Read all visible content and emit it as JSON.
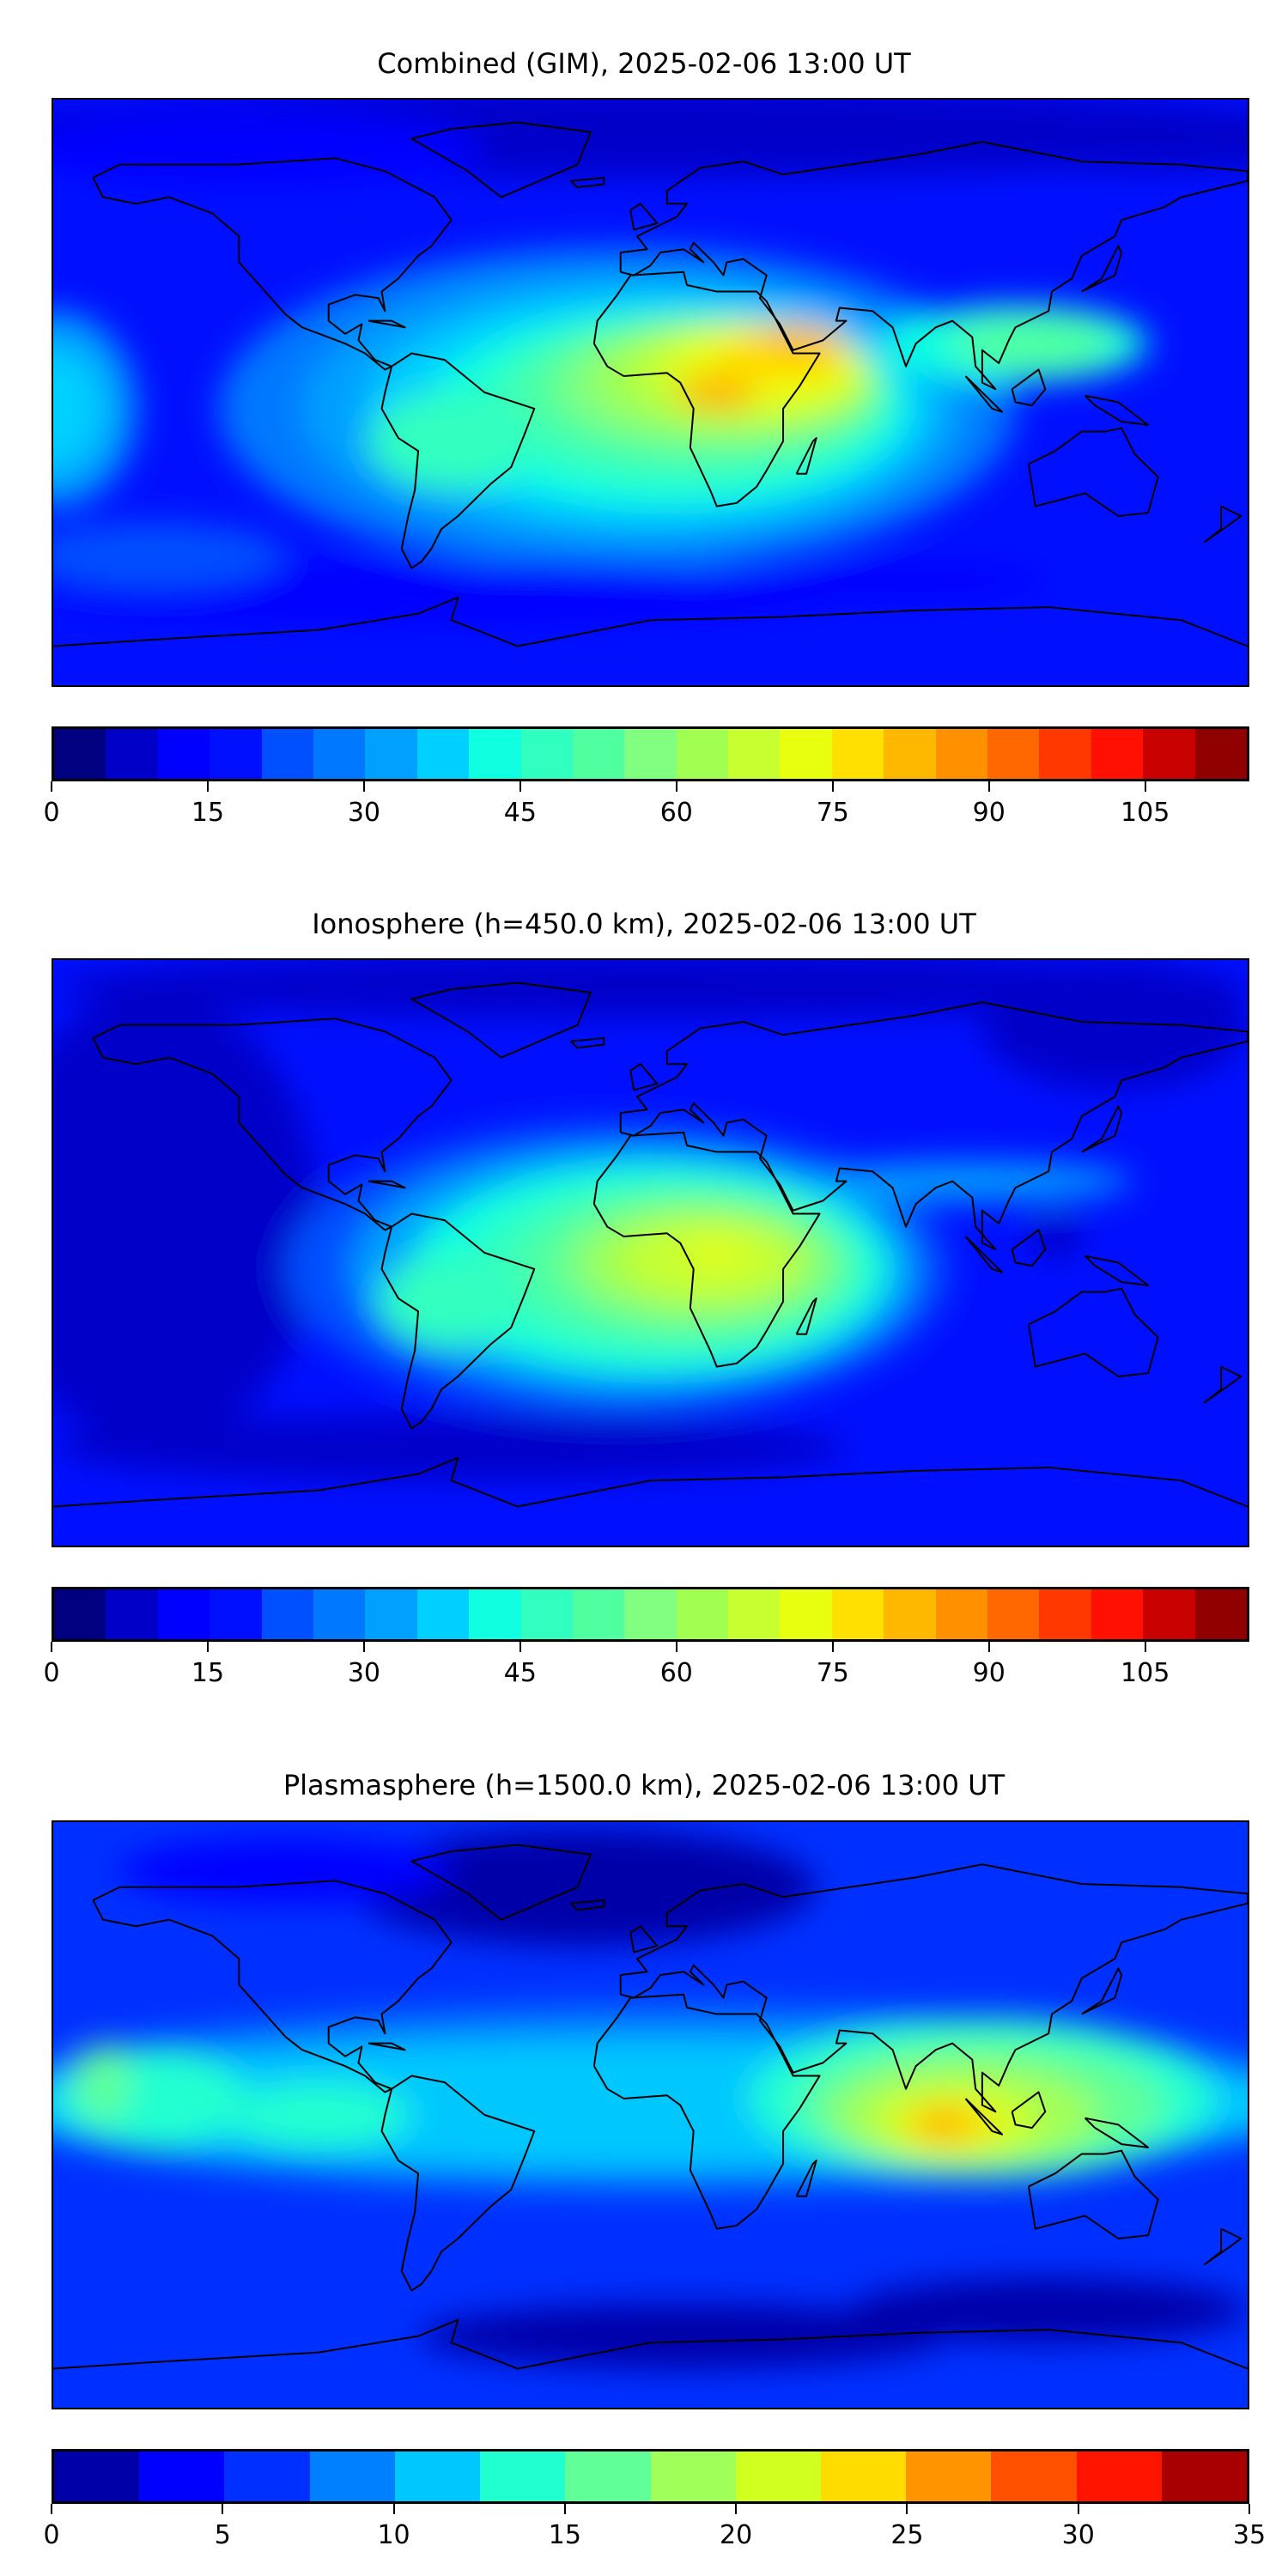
{
  "panels": [
    {
      "title": "Combined (GIM), 2025-02-06 13:00 UT",
      "colorbar": {
        "min": 0,
        "max": 115,
        "step": 5,
        "ticks": [
          "0",
          "15",
          "30",
          "45",
          "60",
          "75",
          "90",
          "105"
        ],
        "tick_values": [
          0,
          15,
          30,
          45,
          60,
          75,
          90,
          105
        ],
        "colors": [
          "#000080",
          "#0000c8",
          "#0000ff",
          "#0010ff",
          "#0050ff",
          "#0078ff",
          "#00a0ff",
          "#00d0ff",
          "#10ffe0",
          "#30ffc0",
          "#50ffa0",
          "#80ff80",
          "#a0ff50",
          "#c8ff30",
          "#e8ff10",
          "#ffe000",
          "#ffb800",
          "#ff9000",
          "#ff6800",
          "#ff3800",
          "#ff1000",
          "#c80000",
          "#900000"
        ]
      }
    },
    {
      "title": "Ionosphere  (h=450.0 km), 2025-02-06 13:00 UT",
      "colorbar": {
        "min": 0,
        "max": 115,
        "step": 5,
        "ticks": [
          "0",
          "15",
          "30",
          "45",
          "60",
          "75",
          "90",
          "105"
        ],
        "tick_values": [
          0,
          15,
          30,
          45,
          60,
          75,
          90,
          105
        ],
        "colors": [
          "#000080",
          "#0000c8",
          "#0000ff",
          "#0010ff",
          "#0050ff",
          "#0078ff",
          "#00a0ff",
          "#00d0ff",
          "#10ffe0",
          "#30ffc0",
          "#50ffa0",
          "#80ff80",
          "#a0ff50",
          "#c8ff30",
          "#e8ff10",
          "#ffe000",
          "#ffb800",
          "#ff9000",
          "#ff6800",
          "#ff3800",
          "#ff1000",
          "#c80000",
          "#900000"
        ]
      }
    },
    {
      "title": "Plasmasphere (h=1500.0 km), 2025-02-06 13:00 UT",
      "colorbar": {
        "min": 0,
        "max": 35,
        "step": 2.5,
        "ticks": [
          "0",
          "5",
          "10",
          "15",
          "20",
          "25",
          "30",
          "35"
        ],
        "tick_values": [
          0,
          5,
          10,
          15,
          20,
          25,
          30,
          35
        ],
        "colors": [
          "#0000a8",
          "#0000ff",
          "#0030ff",
          "#0080ff",
          "#00c8ff",
          "#20ffd0",
          "#60ff98",
          "#a0ff58",
          "#d0ff20",
          "#ffdc00",
          "#ff9400",
          "#ff5000",
          "#ff1400",
          "#a80000"
        ]
      }
    }
  ],
  "chart_data": [
    {
      "type": "heatmap",
      "title": "Combined (GIM), 2025-02-06 13:00 UT",
      "projection": "equirectangular",
      "xlim": [
        -180,
        180
      ],
      "ylim": [
        -90,
        90
      ],
      "colorbar_range": [
        0,
        115
      ],
      "levels_step": 5,
      "max_region": "Africa/Arabia ~80-85",
      "min_region": "high latitudes ~5-15"
    },
    {
      "type": "heatmap",
      "title": "Ionosphere  (h=450.0 km), 2025-02-06 13:00 UT",
      "projection": "equirectangular",
      "xlim": [
        -180,
        180
      ],
      "ylim": [
        -90,
        90
      ],
      "colorbar_range": [
        0,
        115
      ],
      "levels_step": 5,
      "max_region": "Central Africa ~70-75",
      "min_region": "Pacific / Maritime Continent ~0-10"
    },
    {
      "type": "heatmap",
      "title": "Plasmasphere (h=1500.0 km), 2025-02-06 13:00 UT",
      "projection": "equirectangular",
      "xlim": [
        -180,
        180
      ],
      "ylim": [
        -90,
        90
      ],
      "colorbar_range": [
        0,
        35
      ],
      "levels_step": 2.5,
      "max_region": "Indian Ocean near Sumatra ~25-27.5",
      "min_region": "North Atlantic / Southern Ocean ~0-2.5"
    }
  ]
}
